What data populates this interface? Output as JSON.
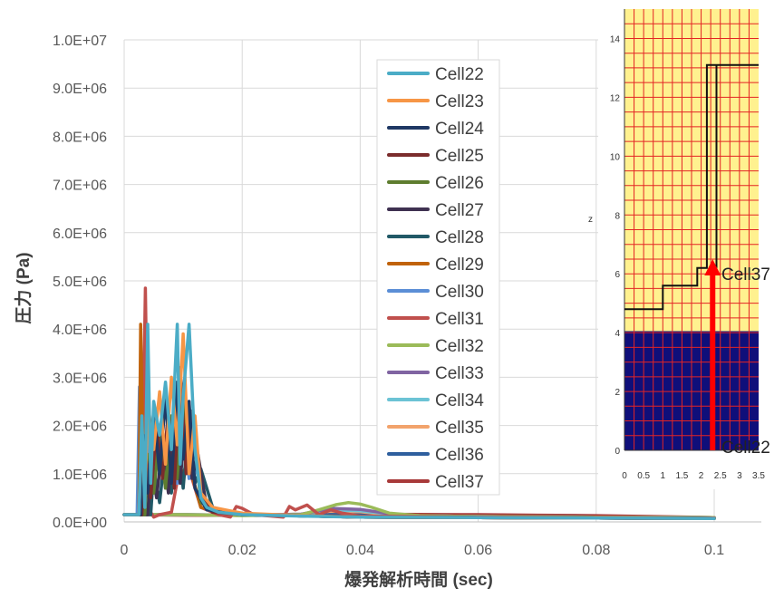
{
  "chart_data": [
    {
      "type": "line",
      "xlabel": "爆発解析時間 (sec)",
      "ylabel": "圧力 (Pa)",
      "xlim": [
        0,
        0.1
      ],
      "ylim": [
        0,
        10000000
      ],
      "x_ticks": [
        "0",
        "0.02",
        "0.04",
        "0.06",
        "0.08",
        "0.1"
      ],
      "y_ticks": [
        "0.0E+00",
        "1.0E+06",
        "2.0E+06",
        "3.0E+06",
        "4.0E+06",
        "5.0E+06",
        "6.0E+06",
        "7.0E+06",
        "8.0E+06",
        "9.0E+06",
        "1.0E+07"
      ],
      "grid": true,
      "legend_position": "inside-center",
      "series": [
        {
          "name": "Cell22",
          "color": "#4bacc6",
          "x": [
            0,
            0.0025,
            0.003,
            0.0035,
            0.004,
            0.0045,
            0.005,
            0.006,
            0.007,
            0.008,
            0.009,
            0.0095,
            0.01,
            0.011,
            0.012,
            0.013,
            0.014,
            0.016,
            0.02,
            0.03,
            0.04,
            0.06,
            0.08,
            0.1
          ],
          "y": [
            150000,
            150000,
            2200000,
            300000,
            4100000,
            800000,
            2500000,
            1800000,
            2900000,
            1500000,
            4100000,
            1200000,
            2600000,
            4100000,
            1500000,
            500000,
            300000,
            200000,
            150000,
            120000,
            100000,
            90000,
            80000,
            70000
          ]
        },
        {
          "name": "Cell23",
          "color": "#f79646",
          "x": [
            0,
            0.0025,
            0.003,
            0.0035,
            0.004,
            0.005,
            0.006,
            0.007,
            0.008,
            0.009,
            0.01,
            0.011,
            0.012,
            0.013,
            0.015,
            0.02,
            0.03,
            0.04,
            0.06,
            0.08,
            0.1
          ],
          "y": [
            150000,
            150000,
            2000000,
            500000,
            2300000,
            1500000,
            2700000,
            1200000,
            3000000,
            1600000,
            3900000,
            1000000,
            2200000,
            600000,
            300000,
            180000,
            130000,
            100000,
            90000,
            80000,
            70000
          ]
        },
        {
          "name": "Cell24",
          "color": "#1f3864",
          "x": [
            0,
            0.0028,
            0.0032,
            0.004,
            0.005,
            0.006,
            0.007,
            0.008,
            0.009,
            0.01,
            0.011,
            0.012,
            0.014,
            0.02,
            0.04,
            0.06,
            0.08,
            0.1
          ],
          "y": [
            150000,
            150000,
            1800000,
            600000,
            2300000,
            1000000,
            2600000,
            800000,
            2900000,
            1300000,
            2500000,
            700000,
            250000,
            150000,
            100000,
            90000,
            80000,
            70000
          ]
        },
        {
          "name": "Cell25",
          "color": "#7b2c2c",
          "x": [
            0,
            0.003,
            0.0035,
            0.0045,
            0.0055,
            0.0065,
            0.0075,
            0.0085,
            0.0095,
            0.0105,
            0.0115,
            0.013,
            0.015,
            0.02,
            0.04,
            0.06,
            0.08,
            0.1
          ],
          "y": [
            150000,
            150000,
            1500000,
            500000,
            2000000,
            900000,
            2300000,
            700000,
            3200000,
            1000000,
            2300000,
            500000,
            200000,
            150000,
            100000,
            90000,
            80000,
            70000
          ]
        },
        {
          "name": "Cell26",
          "color": "#5e7d2f",
          "x": [
            0,
            0.0035,
            0.004,
            0.005,
            0.006,
            0.007,
            0.008,
            0.009,
            0.01,
            0.011,
            0.012,
            0.013,
            0.016,
            0.02,
            0.04,
            0.06,
            0.08,
            0.1
          ],
          "y": [
            150000,
            150000,
            1400000,
            600000,
            1800000,
            700000,
            2200000,
            900000,
            2600000,
            1200000,
            1600000,
            400000,
            200000,
            150000,
            100000,
            90000,
            80000,
            70000
          ]
        },
        {
          "name": "Cell27",
          "color": "#3f3151",
          "x": [
            0,
            0.004,
            0.0045,
            0.0055,
            0.0065,
            0.0075,
            0.0085,
            0.0095,
            0.0105,
            0.0115,
            0.0125,
            0.014,
            0.02,
            0.04,
            0.06,
            0.08,
            0.1
          ],
          "y": [
            150000,
            150000,
            1200000,
            500000,
            1600000,
            600000,
            2000000,
            800000,
            2400000,
            900000,
            1400000,
            300000,
            150000,
            100000,
            90000,
            80000,
            70000
          ]
        },
        {
          "name": "Cell28",
          "color": "#215967",
          "x": [
            0,
            0.0045,
            0.005,
            0.006,
            0.007,
            0.008,
            0.009,
            0.01,
            0.011,
            0.012,
            0.013,
            0.015,
            0.02,
            0.04,
            0.06,
            0.08,
            0.1
          ],
          "y": [
            150000,
            150000,
            1100000,
            400000,
            1500000,
            600000,
            1800000,
            700000,
            2100000,
            800000,
            1100000,
            300000,
            150000,
            100000,
            90000,
            80000,
            70000
          ]
        },
        {
          "name": "Cell29",
          "color": "#c0620a",
          "x": [
            0,
            0.0025,
            0.0028,
            0.0031,
            0.0035,
            0.004,
            0.005,
            0.006,
            0.007,
            0.008,
            0.009,
            0.011,
            0.013,
            0.02,
            0.04,
            0.06,
            0.08,
            0.1
          ],
          "y": [
            150000,
            150000,
            4100000,
            2000000,
            800000,
            2600000,
            1200000,
            2000000,
            800000,
            1800000,
            900000,
            1200000,
            300000,
            150000,
            100000,
            90000,
            80000,
            70000
          ]
        },
        {
          "name": "Cell30",
          "color": "#5b8ed6",
          "x": [
            0,
            0.0022,
            0.0026,
            0.003,
            0.0034,
            0.004,
            0.005,
            0.006,
            0.007,
            0.008,
            0.009,
            0.01,
            0.011,
            0.012,
            0.014,
            0.02,
            0.04,
            0.06,
            0.08,
            0.1
          ],
          "y": [
            150000,
            150000,
            2800000,
            900000,
            300000,
            1700000,
            900000,
            2000000,
            700000,
            1900000,
            800000,
            2300000,
            900000,
            1200000,
            250000,
            150000,
            100000,
            90000,
            80000,
            70000
          ]
        },
        {
          "name": "Cell31",
          "color": "#c0504d",
          "x": [
            0,
            0.003,
            0.0036,
            0.004,
            0.0045,
            0.005,
            0.006,
            0.008,
            0.01,
            0.013,
            0.016,
            0.018,
            0.019,
            0.02,
            0.022,
            0.027,
            0.028,
            0.029,
            0.031,
            0.033,
            0.035,
            0.037,
            0.04,
            0.06,
            0.08,
            0.1
          ],
          "y": [
            150000,
            150000,
            4850000,
            1500000,
            200000,
            100000,
            150000,
            200000,
            1500000,
            300000,
            150000,
            100000,
            320000,
            280000,
            150000,
            100000,
            320000,
            250000,
            350000,
            150000,
            250000,
            180000,
            120000,
            100000,
            90000,
            80000
          ]
        },
        {
          "name": "Cell32",
          "color": "#9bbb59",
          "x": [
            0,
            0.01,
            0.02,
            0.03,
            0.033,
            0.036,
            0.038,
            0.04,
            0.042,
            0.045,
            0.05,
            0.06,
            0.08,
            0.1
          ],
          "y": [
            150000,
            150000,
            130000,
            150000,
            250000,
            360000,
            400000,
            370000,
            300000,
            180000,
            130000,
            110000,
            100000,
            90000
          ]
        },
        {
          "name": "Cell33",
          "color": "#8064a2",
          "x": [
            0,
            0.01,
            0.02,
            0.03,
            0.035,
            0.04,
            0.045,
            0.05,
            0.06,
            0.08,
            0.1
          ],
          "y": [
            150000,
            150000,
            140000,
            160000,
            280000,
            260000,
            170000,
            130000,
            110000,
            100000,
            90000
          ]
        },
        {
          "name": "Cell34",
          "color": "#6cc3d5",
          "x": [
            0,
            0.01,
            0.02,
            0.03,
            0.035,
            0.04,
            0.045,
            0.05,
            0.06,
            0.08,
            0.1
          ],
          "y": [
            150000,
            150000,
            140000,
            160000,
            240000,
            230000,
            160000,
            130000,
            110000,
            100000,
            90000
          ]
        },
        {
          "name": "Cell35",
          "color": "#f2a36c",
          "x": [
            0,
            0.01,
            0.02,
            0.03,
            0.035,
            0.04,
            0.045,
            0.05,
            0.06,
            0.08,
            0.1
          ],
          "y": [
            150000,
            150000,
            140000,
            160000,
            220000,
            210000,
            150000,
            130000,
            110000,
            100000,
            90000
          ]
        },
        {
          "name": "Cell36",
          "color": "#2e5f9e",
          "x": [
            0,
            0.01,
            0.02,
            0.03,
            0.035,
            0.04,
            0.05,
            0.06,
            0.08,
            0.1
          ],
          "y": [
            150000,
            150000,
            140000,
            150000,
            190000,
            180000,
            130000,
            110000,
            100000,
            90000
          ]
        },
        {
          "name": "Cell37",
          "color": "#a83a3a",
          "x": [
            0,
            0.01,
            0.02,
            0.03,
            0.04,
            0.05,
            0.06,
            0.07,
            0.08,
            0.09,
            0.1
          ],
          "y": [
            150000,
            140000,
            135000,
            150000,
            160000,
            155000,
            150000,
            140000,
            130000,
            110000,
            90000
          ]
        }
      ]
    },
    {
      "type": "grid-diagram",
      "ylabel": "z",
      "xlim": [
        0,
        3.5
      ],
      "ylim": [
        0,
        15
      ],
      "x_ticks": [
        "0",
        "0.5",
        "1",
        "1.5",
        "2",
        "2.5",
        "3",
        "3.5"
      ],
      "y_ticks": [
        "0",
        "2",
        "4",
        "6",
        "8",
        "10",
        "12",
        "14"
      ],
      "upper_region_color": "#fff18f",
      "lower_region_color": "#0f0f7a",
      "grid_color": "#e32424",
      "lower_region_top_z": 4.05,
      "outline": [
        [
          0,
          4.8
        ],
        [
          1.0,
          4.8
        ],
        [
          1.0,
          5.6
        ],
        [
          1.9,
          5.6
        ],
        [
          1.9,
          6.2
        ],
        [
          2.15,
          6.2
        ],
        [
          2.15,
          13.1
        ],
        [
          3.5,
          13.1
        ]
      ],
      "inner_line": [
        [
          2.4,
          6.2
        ],
        [
          2.4,
          13.1
        ]
      ],
      "arrow": {
        "x": 2.3,
        "from_z": 0,
        "to_z": 6.5,
        "color": "#ff0000"
      },
      "labels": {
        "top": "Cell37",
        "bottom": "Cell22"
      }
    }
  ]
}
